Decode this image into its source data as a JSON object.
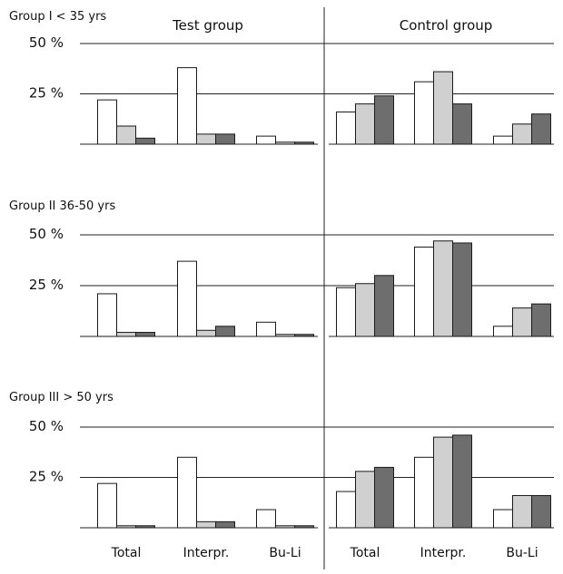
{
  "column_titles": [
    "Test group",
    "Control group"
  ],
  "categories": [
    "Total",
    "Interpr.",
    "Bu-Li"
  ],
  "y_ticks": [
    "50 %",
    "25 %"
  ],
  "colors": {
    "bar1": "#ffffff",
    "bar2": "#d0d0d0",
    "bar3": "#6e6e6e",
    "stroke": "#1a1a1a"
  },
  "chart_data": {
    "type": "bar",
    "ylim": [
      0,
      50
    ],
    "y_ticks": [
      25,
      50
    ],
    "categories": [
      "Total",
      "Interpr.",
      "Bu-Li"
    ],
    "groups": [
      {
        "label": "Group I < 35 yrs",
        "test": [
          [
            22,
            9,
            3
          ],
          [
            38,
            5,
            5
          ],
          [
            4,
            1,
            1
          ]
        ],
        "control": [
          [
            16,
            20,
            24
          ],
          [
            31,
            36,
            20
          ],
          [
            4,
            10,
            15
          ]
        ]
      },
      {
        "label": "Group II 36-50 yrs",
        "test": [
          [
            21,
            2,
            2
          ],
          [
            37,
            3,
            5
          ],
          [
            7,
            1,
            1
          ]
        ],
        "control": [
          [
            24,
            26,
            30
          ],
          [
            44,
            47,
            46
          ],
          [
            5,
            14,
            16
          ]
        ]
      },
      {
        "label": "Group III > 50 yrs",
        "test": [
          [
            22,
            1,
            1
          ],
          [
            35,
            3,
            3
          ],
          [
            9,
            1,
            1
          ]
        ],
        "control": [
          [
            18,
            28,
            30
          ],
          [
            35,
            45,
            46
          ],
          [
            9,
            16,
            16
          ]
        ]
      }
    ]
  }
}
